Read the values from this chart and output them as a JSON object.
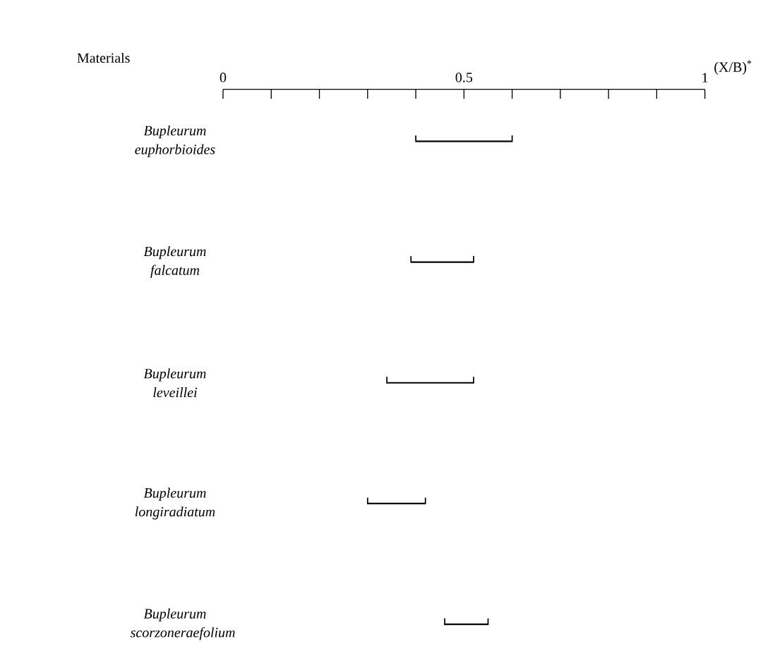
{
  "chart_data": {
    "type": "bar",
    "orientation": "horizontal",
    "xlabel": "(X/B)$^{*}$",
    "ylabel": "Materials",
    "categories": [
      "Bupleurum euphorbioides",
      "Bupleurum falcatum",
      "Bupleurum leveillei",
      "Bupleurum longiradiatum",
      "Bupleurum scorzoneraefolium"
    ],
    "base": [
      0.4,
      0.39,
      0.34,
      0.3,
      0.46
    ],
    "values": [
      0.2,
      0.13,
      0.18,
      0.12,
      0.09
    ],
    "color": "#000000",
    "xlim": [
      0,
      1
    ],
    "xticks": [
      0,
      {
        "value": 0.1,
        "label": null
      },
      {
        "value": 0.2,
        "label": null
      },
      {
        "value": 0.3,
        "label": null
      },
      {
        "value": 0.4,
        "label": null
      },
      0.5,
      {
        "value": 0.6,
        "label": null
      },
      {
        "value": 0.7,
        "label": null
      },
      {
        "value": 0.8,
        "label": null
      },
      {
        "value": 0.9,
        "label": null
      },
      1
    ]
  }
}
